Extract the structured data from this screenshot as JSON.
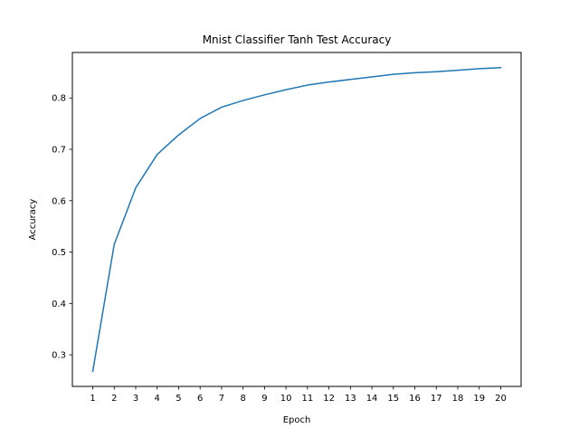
{
  "chart_data": {
    "type": "line",
    "title": "Mnist Classifier Tanh Test Accuracy",
    "xlabel": "Epoch",
    "ylabel": "Accuracy",
    "x": [
      1,
      2,
      3,
      4,
      5,
      6,
      7,
      8,
      9,
      10,
      11,
      12,
      13,
      14,
      15,
      16,
      17,
      18,
      19,
      20
    ],
    "series": [
      {
        "name": "",
        "color": "#1f77b4",
        "values": [
          0.268,
          0.515,
          0.625,
          0.69,
          0.728,
          0.76,
          0.782,
          0.795,
          0.806,
          0.816,
          0.825,
          0.831,
          0.836,
          0.841,
          0.846,
          0.849,
          0.851,
          0.854,
          0.857,
          0.859
        ]
      }
    ],
    "xticks": [
      1,
      2,
      3,
      4,
      5,
      6,
      7,
      8,
      9,
      10,
      11,
      12,
      13,
      14,
      15,
      16,
      17,
      18,
      19,
      20
    ],
    "yticks": [
      0.3,
      0.4,
      0.5,
      0.6,
      0.7,
      0.8
    ],
    "ytick_labels": [
      "0.3",
      "0.4",
      "0.5",
      "0.6",
      "0.7",
      "0.8"
    ],
    "xlim": [
      0.05,
      20.95
    ],
    "ylim": [
      0.2385,
      0.8885
    ],
    "grid": false,
    "legend": "none"
  }
}
